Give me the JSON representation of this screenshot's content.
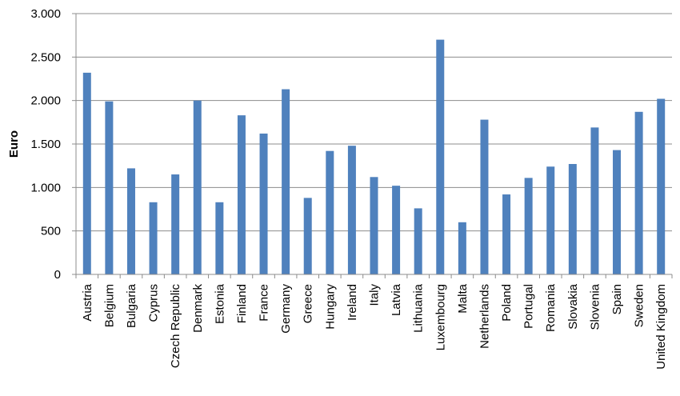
{
  "chart_data": {
    "type": "bar",
    "title": "",
    "xlabel": "",
    "ylabel": "Euro",
    "ylim": [
      0,
      3000
    ],
    "yticks": [
      0,
      500,
      1000,
      1500,
      2000,
      2500,
      3000
    ],
    "ytick_labels": [
      "0",
      "500",
      "1.000",
      "1.500",
      "2.000",
      "2.500",
      "3.000"
    ],
    "grid": true,
    "legend": "none",
    "bar_color": "#4f81bd",
    "categories": [
      "Austria",
      "Belgium",
      "Bulgaria",
      "Cyprus",
      "Czech Republic",
      "Denmark",
      "Estonia",
      "Finland",
      "France",
      "Germany",
      "Greece",
      "Hungary",
      "Ireland",
      "Italy",
      "Latvia",
      "Lithuania",
      "Luxembourg",
      "Malta",
      "Netherlands",
      "Poland",
      "Portugal",
      "Romania",
      "Slovakia",
      "Slovenia",
      "Spain",
      "Sweden",
      "United Kingdom"
    ],
    "values": [
      2320,
      1990,
      1220,
      830,
      1150,
      2000,
      830,
      1830,
      1620,
      2130,
      880,
      1420,
      1480,
      1120,
      1020,
      760,
      2700,
      600,
      1780,
      920,
      1110,
      1240,
      1270,
      1690,
      1430,
      1870,
      2020
    ]
  }
}
